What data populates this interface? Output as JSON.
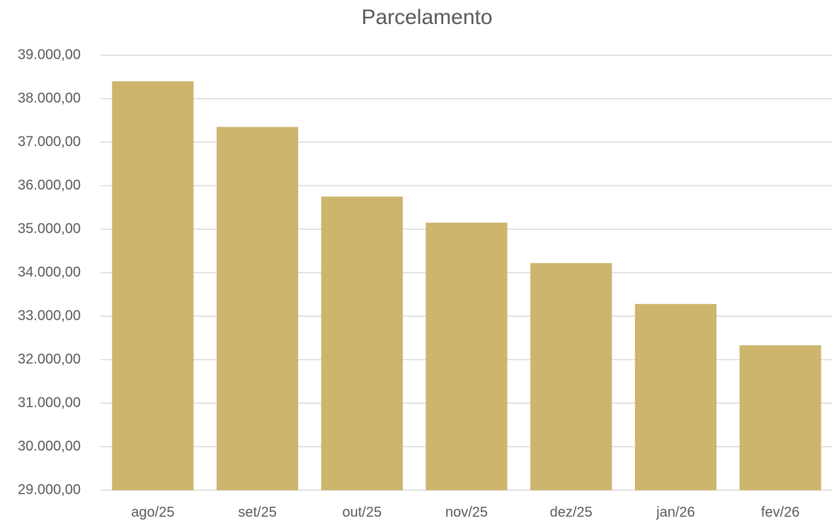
{
  "chart_data": {
    "type": "bar",
    "title": "Parcelamento",
    "categories": [
      "ago/25",
      "set/25",
      "out/25",
      "nov/25",
      "dez/25",
      "jan/26",
      "fev/26"
    ],
    "values": [
      38400,
      37350,
      35750,
      35150,
      34220,
      33280,
      32330
    ],
    "color": "#cdb56d",
    "ylim": [
      29000,
      39000
    ],
    "yticks": [
      {
        "value": 29000,
        "label": "29.000,00"
      },
      {
        "value": 30000,
        "label": "30.000,00"
      },
      {
        "value": 31000,
        "label": "31.000,00"
      },
      {
        "value": 32000,
        "label": "32.000,00"
      },
      {
        "value": 33000,
        "label": "33.000,00"
      },
      {
        "value": 34000,
        "label": "34.000,00"
      },
      {
        "value": 35000,
        "label": "35.000,00"
      },
      {
        "value": 36000,
        "label": "36.000,00"
      },
      {
        "value": 37000,
        "label": "37.000,00"
      },
      {
        "value": 38000,
        "label": "38.000,00"
      },
      {
        "value": 39000,
        "label": "39.000,00"
      }
    ],
    "grid": true
  }
}
